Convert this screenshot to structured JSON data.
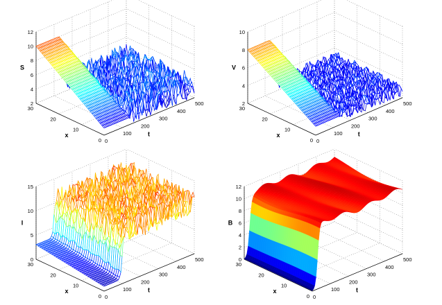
{
  "figure": {
    "description_type": "2x2 grid of 3D surface/mesh plots over space x and time t"
  },
  "chart_data": [
    {
      "type": "surface",
      "style": "mesh",
      "zlabel": "S",
      "xlabel": "x",
      "tlabel": "t",
      "x_range": [
        0,
        30
      ],
      "t_range": [
        0,
        500
      ],
      "zlim": [
        2,
        12
      ],
      "x_ticks": [
        "0",
        "10",
        "20",
        "30"
      ],
      "t_ticks": [
        "0",
        "100",
        "200",
        "300",
        "400",
        "500"
      ],
      "z_ticks": [
        "2",
        "4",
        "6",
        "8",
        "10",
        "12"
      ],
      "profile": {
        "initial_high": 10,
        "initial_low": 3,
        "transition_t": 150,
        "noise_level": 3.2,
        "steady_mean": 3.6
      }
    },
    {
      "type": "surface",
      "style": "mesh",
      "zlabel": "V",
      "xlabel": "x",
      "tlabel": "t",
      "x_range": [
        0,
        30
      ],
      "t_range": [
        0,
        500
      ],
      "zlim": [
        2,
        10
      ],
      "x_ticks": [
        "0",
        "10",
        "20",
        "30"
      ],
      "t_ticks": [
        "0",
        "100",
        "200",
        "300",
        "400",
        "500"
      ],
      "z_ticks": [
        "2",
        "4",
        "6",
        "8",
        "10"
      ],
      "profile": {
        "initial_high": 8,
        "initial_low": 3,
        "transition_t": 150,
        "noise_level": 1.5,
        "steady_mean": 3.0
      }
    },
    {
      "type": "surface",
      "style": "mesh",
      "zlabel": "I",
      "xlabel": "x",
      "tlabel": "t",
      "x_range": [
        0,
        30
      ],
      "t_range": [
        0,
        500
      ],
      "zlim": [
        0,
        15
      ],
      "x_ticks": [
        "0",
        "10",
        "20",
        "30"
      ],
      "t_ticks": [
        "0",
        "100",
        "200",
        "300",
        "400",
        "500"
      ],
      "z_ticks": [
        "0",
        "5",
        "10",
        "15"
      ],
      "profile": {
        "initial_high": 3,
        "initial_low": 1,
        "transition_t": 100,
        "noise_level": 5,
        "steady_mean": 10.5
      }
    },
    {
      "type": "surface",
      "style": "filled",
      "zlabel": "B",
      "xlabel": "x",
      "tlabel": "t",
      "x_range": [
        0,
        30
      ],
      "t_range": [
        0,
        500
      ],
      "zlim": [
        0,
        12
      ],
      "x_ticks": [
        "0",
        "10",
        "20",
        "30"
      ],
      "t_ticks": [
        "0",
        "100",
        "200",
        "300",
        "400",
        "500"
      ],
      "z_ticks": [
        "0",
        "2",
        "4",
        "6",
        "8",
        "10",
        "12"
      ],
      "profile": {
        "initial_high": 0,
        "initial_low": 0,
        "transition_t": 30,
        "noise_level": 0.6,
        "steady_mean": 10.5
      }
    }
  ]
}
